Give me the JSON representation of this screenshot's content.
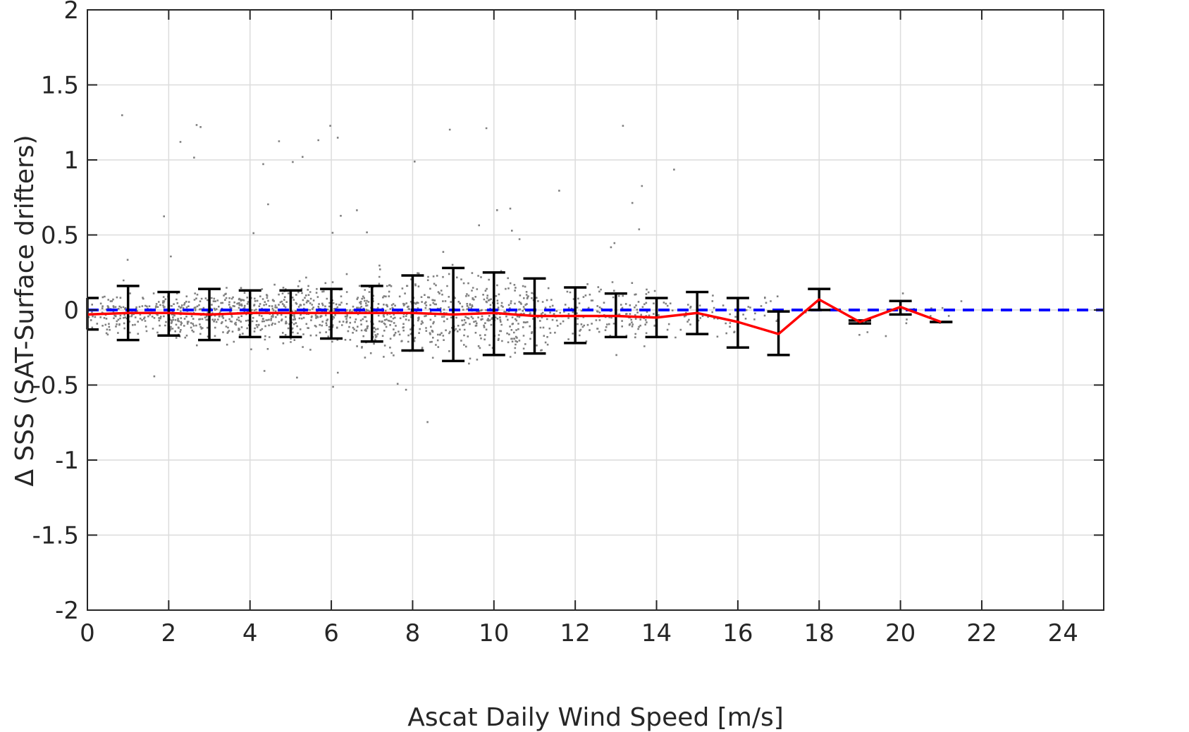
{
  "chart_data": {
    "type": "scatter",
    "xlabel": "Ascat Daily Wind Speed [m/s]",
    "ylabel": "Δ SSS (SAT-Surface drifters)",
    "xlim": [
      0,
      25
    ],
    "ylim": [
      -2,
      2
    ],
    "xticks": [
      0,
      2,
      4,
      6,
      8,
      10,
      12,
      14,
      16,
      18,
      20,
      22,
      24
    ],
    "yticks": [
      -2,
      -1.5,
      -1,
      -0.5,
      0,
      0.5,
      1,
      1.5,
      2
    ],
    "ytick_labels": [
      "-2",
      "-1.5",
      "-1",
      "-0.5",
      "0",
      "0.5",
      "1",
      "1.5",
      "2"
    ],
    "grid": true,
    "colors": {
      "scatter": "#808080",
      "mean_line": "#ff0000",
      "zero_line": "#0000ff",
      "error_bars": "#000000"
    },
    "scatter_note": "dense cloud of individual match-up points (grey dots) concentrated between about -0.5 and 0.5, spreading wider at 6-10 m/s and thinning beyond 14 m/s",
    "zero_reference": {
      "y": 0,
      "style": "dashed"
    },
    "binned_stats": {
      "x": [
        0,
        1,
        2,
        3,
        4,
        5,
        6,
        7,
        8,
        9,
        10,
        11,
        12,
        13,
        14,
        15,
        16,
        17,
        18,
        19,
        20,
        21
      ],
      "mean": [
        -0.03,
        -0.02,
        -0.02,
        -0.03,
        -0.02,
        -0.02,
        -0.02,
        -0.02,
        -0.02,
        -0.03,
        -0.02,
        -0.04,
        -0.04,
        -0.04,
        -0.05,
        -0.02,
        -0.08,
        -0.16,
        0.07,
        -0.08,
        0.02,
        -0.08
      ],
      "lower": [
        -0.13,
        -0.2,
        -0.17,
        -0.2,
        -0.18,
        -0.18,
        -0.19,
        -0.21,
        -0.27,
        -0.34,
        -0.3,
        -0.29,
        -0.22,
        -0.18,
        -0.18,
        -0.16,
        -0.25,
        -0.3,
        0.0,
        -0.09,
        -0.03,
        -0.08
      ],
      "upper": [
        0.08,
        0.16,
        0.12,
        0.14,
        0.13,
        0.13,
        0.14,
        0.16,
        0.23,
        0.28,
        0.25,
        0.21,
        0.15,
        0.11,
        0.08,
        0.12,
        0.08,
        -0.01,
        0.14,
        -0.07,
        0.06,
        -0.08
      ]
    }
  }
}
